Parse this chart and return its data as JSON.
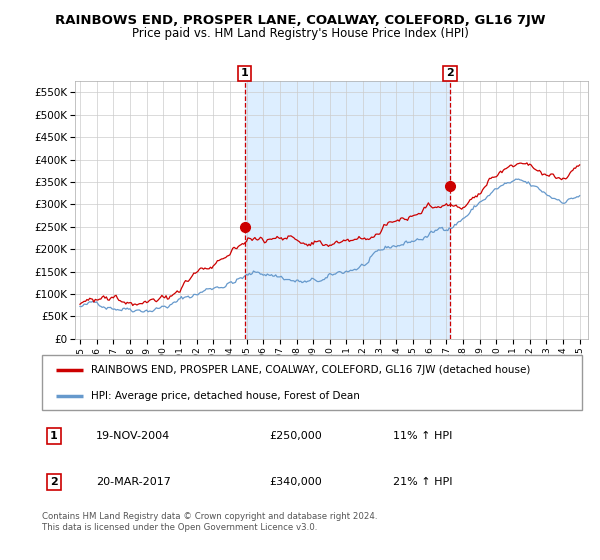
{
  "title": "RAINBOWS END, PROSPER LANE, COALWAY, COLEFORD, GL16 7JW",
  "subtitle": "Price paid vs. HM Land Registry's House Price Index (HPI)",
  "ylabel_ticks": [
    "£0",
    "£50K",
    "£100K",
    "£150K",
    "£200K",
    "£250K",
    "£300K",
    "£350K",
    "£400K",
    "£450K",
    "£500K",
    "£550K"
  ],
  "ytick_values": [
    0,
    50000,
    100000,
    150000,
    200000,
    250000,
    300000,
    350000,
    400000,
    450000,
    500000,
    550000
  ],
  "ylim": [
    0,
    575000
  ],
  "sale1_t": 2004.88,
  "sale1_val": 250000,
  "sale2_t": 2017.21,
  "sale2_val": 340000,
  "sale1_year": "19-NOV-2004",
  "sale1_price": "£250,000",
  "sale1_hpi": "11% ↑ HPI",
  "sale2_year": "20-MAR-2017",
  "sale2_price": "£340,000",
  "sale2_hpi": "21% ↑ HPI",
  "legend_line1": "RAINBOWS END, PROSPER LANE, COALWAY, COLEFORD, GL16 7JW (detached house)",
  "legend_line2": "HPI: Average price, detached house, Forest of Dean",
  "footer": "Contains HM Land Registry data © Crown copyright and database right 2024.\nThis data is licensed under the Open Government Licence v3.0.",
  "line_color_red": "#cc0000",
  "line_color_blue": "#6699cc",
  "shade_color": "#ddeeff",
  "grid_color": "#cccccc",
  "bg_color": "#ffffff",
  "xlim_left": 1994.7,
  "xlim_right": 2025.5
}
